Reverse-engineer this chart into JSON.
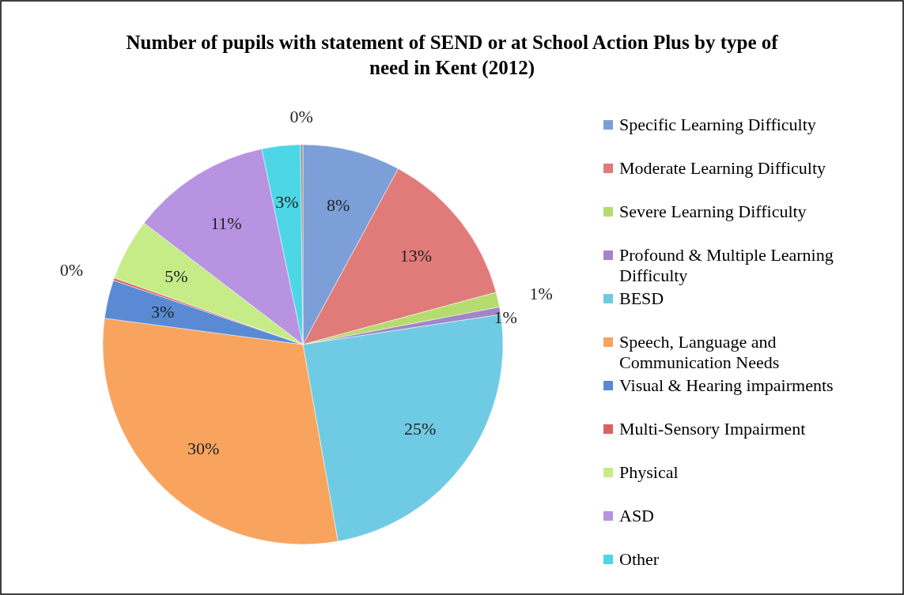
{
  "chart_data": {
    "type": "pie",
    "title": "Number of pupils with statement of SEND or at School Action Plus by type of need in Kent (2012)",
    "categories": [
      "Specific Learning Difficulty",
      "Moderate Learning Difficulty",
      "Severe Learning Difficulty",
      "Profound & Multiple Learning Difficulty",
      "BESD",
      "Speech, Language and Communication Needs",
      "Visual & Hearing impairments",
      "Multi-Sensory Impairment",
      "Physical",
      "ASD",
      "Other",
      null
    ],
    "values": [
      7.9,
      12.9,
      1.2,
      0.6,
      24.6,
      29.9,
      3.1,
      0.2,
      5.0,
      11.3,
      3.1,
      0.2
    ],
    "value_labels": [
      "8%",
      "13%",
      "1%",
      "1%",
      "25%",
      "30%",
      "3%",
      "0%",
      "5%",
      "11%",
      "3%",
      "0%"
    ],
    "colors": [
      "#7d9fd8",
      "#e07b7a",
      "#b5dc6e",
      "#a385c7",
      "#6fcbe3",
      "#f8a45f",
      "#5a8ad4",
      "#d9625f",
      "#c6ec88",
      "#b893e2",
      "#4dd6e6",
      "#9a9a9a"
    ],
    "legend": "right"
  }
}
